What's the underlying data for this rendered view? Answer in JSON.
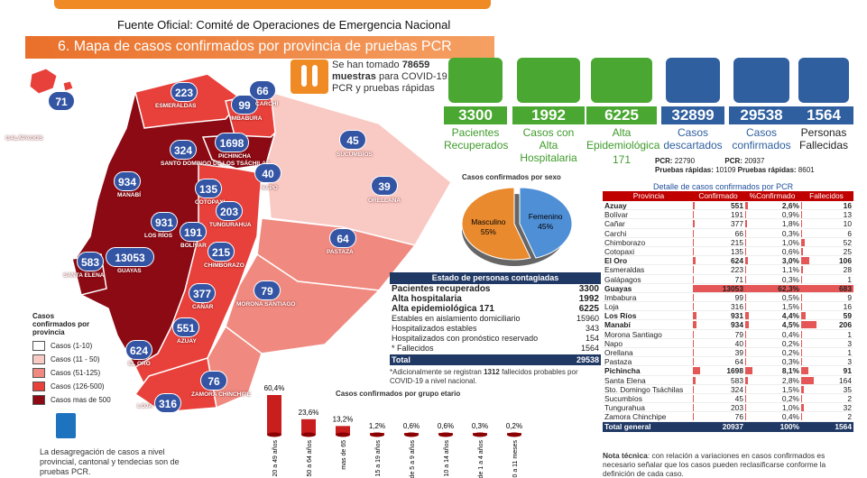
{
  "source": "Fuente Oficial: Comité de Operaciones de Emergencia Nacional",
  "section_title": "6.   Mapa de casos confirmados por provincia  de pruebas PCR",
  "map": {
    "provinces": [
      {
        "name": "GALÁPAGOS",
        "value": "71"
      },
      {
        "name": "ESMERALDAS",
        "value": "223"
      },
      {
        "name": "IMBABURA",
        "value": "99"
      },
      {
        "name": "CARCHI",
        "value": "66"
      },
      {
        "name": "SANTO DOMINGO DE LOS TSÁCHILAS",
        "value": "324"
      },
      {
        "name": "PICHINCHA",
        "value": "1698"
      },
      {
        "name": "SUCUMBÍOS",
        "value": "45"
      },
      {
        "name": "NAPO",
        "value": "40"
      },
      {
        "name": "ORELLANA",
        "value": "39"
      },
      {
        "name": "MANABÍ",
        "value": "934"
      },
      {
        "name": "COTOPAXI",
        "value": "135"
      },
      {
        "name": "TUNGURAHUA",
        "value": "203"
      },
      {
        "name": "LOS RÍOS",
        "value": "931"
      },
      {
        "name": "BOLÍVAR",
        "value": "191"
      },
      {
        "name": "PASTAZA",
        "value": "64"
      },
      {
        "name": "CHIMBORAZO",
        "value": "215"
      },
      {
        "name": "SANTA ELENA",
        "value": "583"
      },
      {
        "name": "GUAYAS",
        "value": "13053"
      },
      {
        "name": "CAÑAR",
        "value": "377"
      },
      {
        "name": "MORONA SANTIAGO",
        "value": "79"
      },
      {
        "name": "AZUAY",
        "value": "551"
      },
      {
        "name": "EL ORO",
        "value": "624"
      },
      {
        "name": "ZAMORA CHINCHIPE",
        "value": "76"
      },
      {
        "name": "LOJA",
        "value": "316"
      }
    ],
    "legend_title": "Casos confirmados por provincia",
    "legend": [
      {
        "label": "Casos (1-10)",
        "color": "#ffffff"
      },
      {
        "label": "Casos (11 - 50)",
        "color": "#f9c9c3"
      },
      {
        "label": "Casos (51-125)",
        "color": "#f08a80"
      },
      {
        "label": "Casos (126-500)",
        "color": "#e8403a"
      },
      {
        "label": "Casos mas de 500",
        "color": "#8b0a14"
      }
    ]
  },
  "bottom_note": "La desagregación de casos a nivel provincial, cantonal y tendecias son de pruebas PCR.",
  "tests": {
    "pre": "Se han tomado",
    "count": "78659",
    "bold": "muestras",
    "rest": "para COVID-19, entre PCR y pruebas rápidas"
  },
  "kpis": [
    {
      "value": "3300",
      "label": "Pacientes Recuperados",
      "color": "#4aa832"
    },
    {
      "value": "1992",
      "label": "Casos con Alta Hospitalaria",
      "color": "#4aa832"
    },
    {
      "value": "6225",
      "label": "Alta Epidemiológica",
      "extra": "171",
      "color": "#4aa832"
    },
    {
      "value": "32899",
      "label": "Casos descartados",
      "color": "#2f5f9e"
    },
    {
      "value": "29538",
      "label": "Casos confirmados",
      "color": "#2f5f9e"
    },
    {
      "value": "1564",
      "label": "Personas Fallecidas",
      "color": "#2f5f9e"
    }
  ],
  "sub_tests": {
    "pcr1_label": "PCR:",
    "pcr1": "22790",
    "pcr2_label": "PCR:",
    "pcr2": "20937",
    "rap1_label": "Pruebas rápidas:",
    "rap1": "10109",
    "rap2_label": "Pruebas rápidas:",
    "rap2": "8601"
  },
  "estado": {
    "title": "Estado de personas contagiadas",
    "rows": [
      {
        "label": "Pacientes recuperados",
        "value": "3300",
        "bold": true
      },
      {
        "label": "Alta hospitalaria",
        "value": "1992",
        "bold": true
      },
      {
        "label": "Alta epidemiológica 171",
        "value": "6225",
        "bold": true
      },
      {
        "label": "Estables en aislamiento domiciliario",
        "value": "15960",
        "bold": false
      },
      {
        "label": "Hospitalizados estables",
        "value": "343",
        "bold": false
      },
      {
        "label": "Hospitalizados con pronóstico reservado",
        "value": "154",
        "bold": false
      },
      {
        "label": "* Fallecidos",
        "value": "1564",
        "bold": false
      }
    ],
    "total_label": "Total",
    "total": "29538",
    "note_pre": "*Adicionalmente se registran",
    "note_num": "1312",
    "note_post": "fallecidos probables por COVID-19 a nivel nacional."
  },
  "table": {
    "title": "Detalle de casos confirmados por PCR",
    "headers": [
      "Provincia",
      "Confirmado",
      "%Confirmado",
      "Fallecidos"
    ],
    "rows": [
      {
        "p": "Azuay",
        "c": "551",
        "pc": "2,6%",
        "f": "16",
        "bold": true,
        "cv": 551,
        "pv": 2.6,
        "fv": 16
      },
      {
        "p": "Bolívar",
        "c": "191",
        "pc": "0,9%",
        "f": "13",
        "bold": false,
        "cv": 191,
        "pv": 0.9,
        "fv": 13
      },
      {
        "p": "Cañar",
        "c": "377",
        "pc": "1,8%",
        "f": "10",
        "bold": false,
        "cv": 377,
        "pv": 1.8,
        "fv": 10
      },
      {
        "p": "Carchi",
        "c": "66",
        "pc": "0,3%",
        "f": "6",
        "bold": false,
        "cv": 66,
        "pv": 0.3,
        "fv": 6
      },
      {
        "p": "Chimborazo",
        "c": "215",
        "pc": "1,0%",
        "f": "52",
        "bold": false,
        "cv": 215,
        "pv": 1.0,
        "fv": 52
      },
      {
        "p": "Cotopaxi",
        "c": "135",
        "pc": "0,6%",
        "f": "25",
        "bold": false,
        "cv": 135,
        "pv": 0.6,
        "fv": 25
      },
      {
        "p": "El Oro",
        "c": "624",
        "pc": "3,0%",
        "f": "106",
        "bold": true,
        "cv": 624,
        "pv": 3.0,
        "fv": 106
      },
      {
        "p": "Esmeraldas",
        "c": "223",
        "pc": "1,1%",
        "f": "28",
        "bold": false,
        "cv": 223,
        "pv": 1.1,
        "fv": 28
      },
      {
        "p": "Galápagos",
        "c": "71",
        "pc": "0,3%",
        "f": "1",
        "bold": false,
        "cv": 71,
        "pv": 0.3,
        "fv": 1
      },
      {
        "p": "Guayas",
        "c": "13053",
        "pc": "62,3%",
        "f": "683",
        "bold": true,
        "cv": 13053,
        "pv": 62.3,
        "fv": 683
      },
      {
        "p": "Imbabura",
        "c": "99",
        "pc": "0,5%",
        "f": "9",
        "bold": false,
        "cv": 99,
        "pv": 0.5,
        "fv": 9
      },
      {
        "p": "Loja",
        "c": "316",
        "pc": "1,5%",
        "f": "16",
        "bold": false,
        "cv": 316,
        "pv": 1.5,
        "fv": 16
      },
      {
        "p": "Los Ríos",
        "c": "931",
        "pc": "4,4%",
        "f": "59",
        "bold": true,
        "cv": 931,
        "pv": 4.4,
        "fv": 59
      },
      {
        "p": "Manabí",
        "c": "934",
        "pc": "4,5%",
        "f": "206",
        "bold": true,
        "cv": 934,
        "pv": 4.5,
        "fv": 206
      },
      {
        "p": "Morona Santiago",
        "c": "79",
        "pc": "0,4%",
        "f": "1",
        "bold": false,
        "cv": 79,
        "pv": 0.4,
        "fv": 1
      },
      {
        "p": "Napo",
        "c": "40",
        "pc": "0,2%",
        "f": "3",
        "bold": false,
        "cv": 40,
        "pv": 0.2,
        "fv": 3
      },
      {
        "p": "Orellana",
        "c": "39",
        "pc": "0,2%",
        "f": "1",
        "bold": false,
        "cv": 39,
        "pv": 0.2,
        "fv": 1
      },
      {
        "p": "Pastaza",
        "c": "64",
        "pc": "0,3%",
        "f": "3",
        "bold": false,
        "cv": 64,
        "pv": 0.3,
        "fv": 3
      },
      {
        "p": "Pichincha",
        "c": "1698",
        "pc": "8,1%",
        "f": "91",
        "bold": true,
        "cv": 1698,
        "pv": 8.1,
        "fv": 91
      },
      {
        "p": "Santa Elena",
        "c": "583",
        "pc": "2,8%",
        "f": "164",
        "bold": false,
        "cv": 583,
        "pv": 2.8,
        "fv": 164
      },
      {
        "p": "Sto. Domingo Tsáchilas",
        "c": "324",
        "pc": "1,5%",
        "f": "35",
        "bold": false,
        "cv": 324,
        "pv": 1.5,
        "fv": 35
      },
      {
        "p": "Sucumbíos",
        "c": "45",
        "pc": "0,2%",
        "f": "2",
        "bold": false,
        "cv": 45,
        "pv": 0.2,
        "fv": 2
      },
      {
        "p": "Tungurahua",
        "c": "203",
        "pc": "1,0%",
        "f": "32",
        "bold": false,
        "cv": 203,
        "pv": 1.0,
        "fv": 32
      },
      {
        "p": "Zamora Chinchipe",
        "c": "76",
        "pc": "0,4%",
        "f": "2",
        "bold": false,
        "cv": 76,
        "pv": 0.4,
        "fv": 2
      }
    ],
    "total": {
      "p": "Total general",
      "c": "20937",
      "pc": "100%",
      "f": "1564"
    },
    "note_bold": "Nota técnica",
    "note": ": con relación a variaciones en casos confirmados es necesario señalar que los casos  pueden reclasificarse  conforme la definición de cada caso."
  },
  "chart_data": [
    {
      "type": "pie",
      "title": "Casos confirmados por sexo",
      "categories": [
        "Masculino",
        "Femenino"
      ],
      "values": [
        55,
        45
      ],
      "labels": [
        "55%",
        "45%"
      ],
      "colors": [
        "#e98a2e",
        "#4f8fd6"
      ]
    },
    {
      "type": "bar",
      "title": "Casos confirmados por grupo etario",
      "categories": [
        "de 20 a 49 años",
        "de 50 a 64 años",
        "mas de 65",
        "de 15 a 19 años",
        "de 5 a 9 años",
        "de 10 a 14 años",
        "de 1 a 4 años",
        "de 0 a 11 meses"
      ],
      "values": [
        60.4,
        23.6,
        13.2,
        1.2,
        0.6,
        0.6,
        0.3,
        0.2
      ],
      "labels": [
        "60,4%",
        "23,6%",
        "13,2%",
        "1,2%",
        "0,6%",
        "0,6%",
        "0,3%",
        "0,2%"
      ],
      "color": "#c81e1e"
    }
  ]
}
